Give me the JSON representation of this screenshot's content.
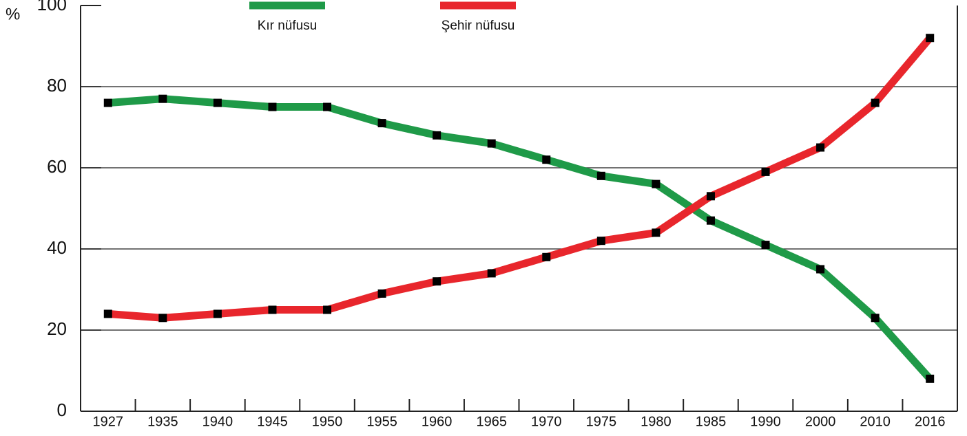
{
  "chart_data": {
    "type": "line",
    "y_label": "%",
    "categories": [
      "1927",
      "1935",
      "1940",
      "1945",
      "1950",
      "1955",
      "1960",
      "1965",
      "1970",
      "1975",
      "1980",
      "1985",
      "1990",
      "2000",
      "2010",
      "2016"
    ],
    "series": [
      {
        "name": "Kır nüfusu",
        "color": "#1f9a48",
        "values": [
          76,
          77,
          76,
          75,
          75,
          71,
          68,
          66,
          62,
          58,
          56,
          47,
          41,
          35,
          23,
          8
        ]
      },
      {
        "name": "Şehir nüfusu",
        "color": "#e8262c",
        "values": [
          24,
          23,
          24,
          25,
          25,
          29,
          32,
          34,
          38,
          42,
          44,
          53,
          59,
          65,
          76,
          92
        ]
      }
    ],
    "ylim": [
      0,
      100
    ],
    "yticks": [
      0,
      20,
      40,
      60,
      80,
      100
    ],
    "grid": true,
    "legend": "top"
  }
}
